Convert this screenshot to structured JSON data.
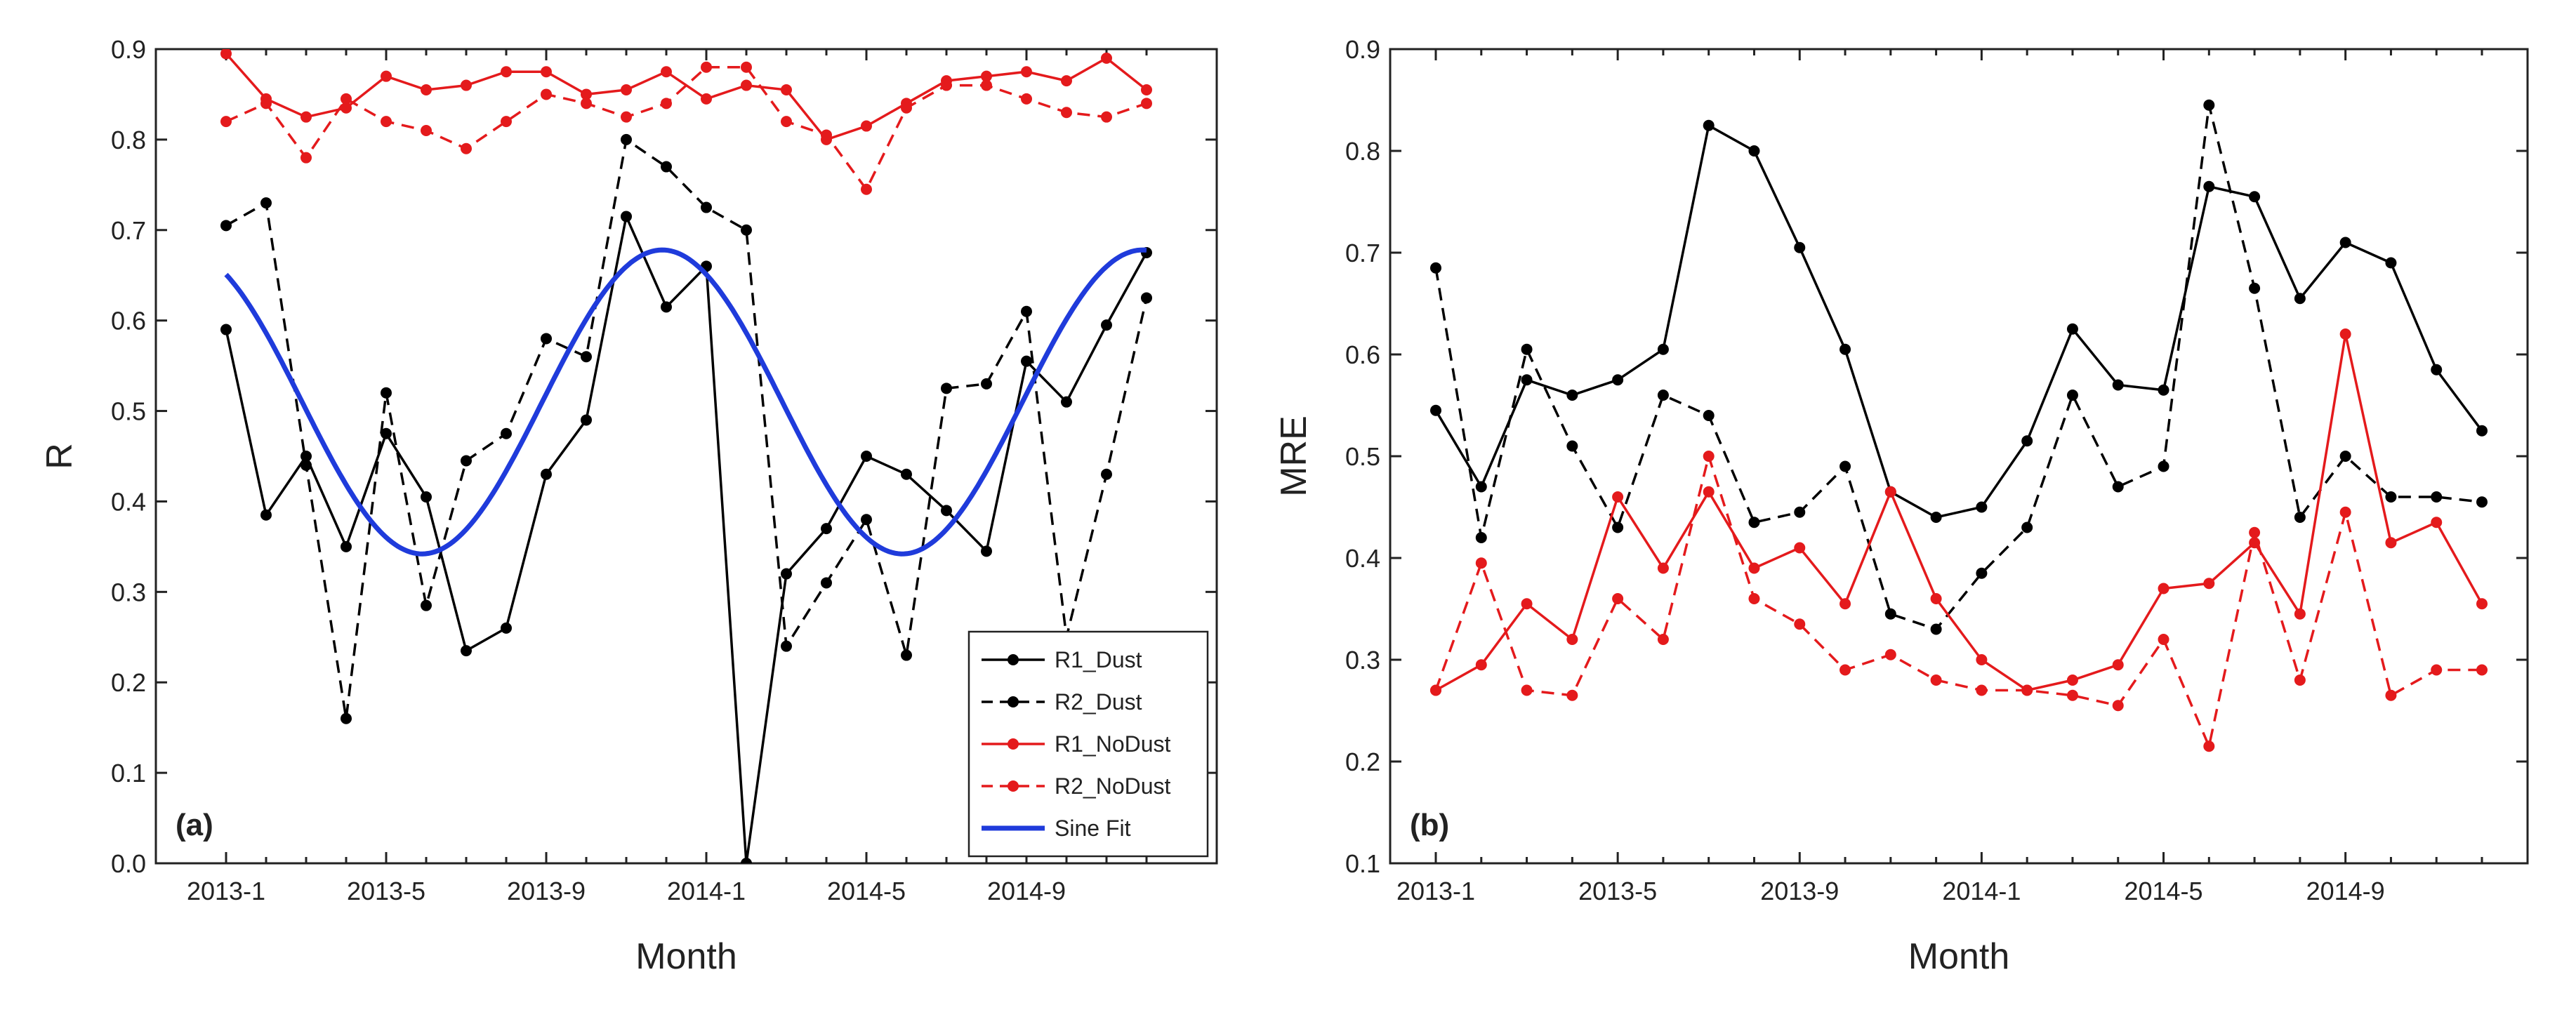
{
  "chart_data": [
    {
      "type": "line",
      "panel_label": "(a)",
      "xlabel": "Month",
      "ylabel": "R",
      "ylim": [
        0,
        0.9
      ],
      "yticks": [
        0.0,
        0.1,
        0.2,
        0.3,
        0.4,
        0.5,
        0.6,
        0.7,
        0.8,
        0.9
      ],
      "ytick_labels": [
        "0.0",
        "0.1",
        "0.2",
        "0.3",
        "0.4",
        "0.5",
        "0.6",
        "0.7",
        "0.8",
        "0.9"
      ],
      "xtick_labels": [
        "2013-1",
        "2013-5",
        "2013-9",
        "2014-1",
        "2014-5",
        "2014-9"
      ],
      "x": [
        "2013-1",
        "2013-2",
        "2013-3",
        "2013-4",
        "2013-5",
        "2013-6",
        "2013-7",
        "2013-8",
        "2013-9",
        "2013-10",
        "2013-11",
        "2013-12",
        "2014-1",
        "2014-2",
        "2014-3",
        "2014-4",
        "2014-5",
        "2014-6",
        "2014-7",
        "2014-8",
        "2014-9",
        "2014-10",
        "2014-11",
        "2014-12"
      ],
      "legend_position": "bottom-right",
      "grid": false,
      "series": [
        {
          "name": "R1_Dust",
          "color": "#000000",
          "dash": "solid",
          "marker": true,
          "values": [
            0.59,
            0.385,
            0.45,
            0.35,
            0.475,
            0.405,
            0.235,
            0.26,
            0.43,
            0.49,
            0.715,
            0.615,
            0.66,
            0.0,
            0.32,
            0.37,
            0.45,
            0.43,
            0.39,
            0.345,
            0.555,
            0.51,
            0.595,
            0.675
          ]
        },
        {
          "name": "R2_Dust",
          "color": "#000000",
          "dash": "dashed",
          "marker": true,
          "values": [
            0.705,
            0.73,
            0.44,
            0.16,
            0.52,
            0.285,
            0.445,
            0.475,
            0.58,
            0.56,
            0.8,
            0.77,
            0.725,
            0.7,
            0.24,
            0.31,
            0.38,
            0.23,
            0.525,
            0.53,
            0.61,
            0.25,
            0.43,
            0.625
          ]
        },
        {
          "name": "R1_NoDust",
          "color": "#e41a1c",
          "dash": "solid",
          "marker": true,
          "values": [
            0.895,
            0.845,
            0.825,
            0.835,
            0.87,
            0.855,
            0.86,
            0.875,
            0.875,
            0.85,
            0.855,
            0.875,
            0.845,
            0.86,
            0.855,
            0.8,
            0.815,
            0.84,
            0.865,
            0.87,
            0.875,
            0.865,
            0.89,
            0.855
          ]
        },
        {
          "name": "R2_NoDust",
          "color": "#e41a1c",
          "dash": "dashed",
          "marker": true,
          "values": [
            0.82,
            0.84,
            0.78,
            0.845,
            0.82,
            0.81,
            0.79,
            0.82,
            0.85,
            0.84,
            0.825,
            0.84,
            0.88,
            0.88,
            0.82,
            0.805,
            0.745,
            0.835,
            0.86,
            0.86,
            0.845,
            0.83,
            0.825,
            0.84
          ]
        },
        {
          "name": "Sine Fit",
          "color": "#1f3bdb",
          "dash": "solid",
          "marker": false,
          "sine": {
            "mean": 0.51,
            "amplitude": 0.168,
            "period_months": 12,
            "peak_month_index": 10.9,
            "x_start": 0,
            "x_end": 23
          }
        }
      ]
    },
    {
      "type": "line",
      "panel_label": "(b)",
      "xlabel": "Month",
      "ylabel": "MRE",
      "ylim": [
        0.1,
        0.9
      ],
      "yticks": [
        0.1,
        0.2,
        0.3,
        0.4,
        0.5,
        0.6,
        0.7,
        0.8,
        0.9
      ],
      "ytick_labels": [
        "0.1",
        "0.2",
        "0.3",
        "0.4",
        "0.5",
        "0.6",
        "0.7",
        "0.8",
        "0.9"
      ],
      "xtick_labels": [
        "2013-1",
        "2013-5",
        "2013-9",
        "2014-1",
        "2014-5",
        "2014-9"
      ],
      "x": [
        "2013-1",
        "2013-2",
        "2013-3",
        "2013-4",
        "2013-5",
        "2013-6",
        "2013-7",
        "2013-8",
        "2013-9",
        "2013-10",
        "2013-11",
        "2013-12",
        "2014-1",
        "2014-2",
        "2014-3",
        "2014-4",
        "2014-5",
        "2014-6",
        "2014-7",
        "2014-8",
        "2014-9",
        "2014-10",
        "2014-11",
        "2014-12"
      ],
      "grid": false,
      "series": [
        {
          "name": "R1_Dust",
          "color": "#000000",
          "dash": "solid",
          "marker": true,
          "values": [
            0.545,
            0.47,
            0.575,
            0.56,
            0.575,
            0.605,
            0.825,
            0.8,
            0.705,
            0.605,
            0.465,
            0.44,
            0.45,
            0.515,
            0.625,
            0.57,
            0.565,
            0.765,
            0.755,
            0.655,
            0.71,
            0.69,
            0.585,
            0.525
          ]
        },
        {
          "name": "R2_Dust",
          "color": "#000000",
          "dash": "dashed",
          "marker": true,
          "values": [
            0.685,
            0.42,
            0.605,
            0.51,
            0.43,
            0.56,
            0.54,
            0.435,
            0.445,
            0.49,
            0.345,
            0.33,
            0.385,
            0.43,
            0.56,
            0.47,
            0.49,
            0.845,
            0.665,
            0.44,
            0.5,
            0.46,
            0.46,
            0.455
          ]
        },
        {
          "name": "R1_NoDust",
          "color": "#e41a1c",
          "dash": "solid",
          "marker": true,
          "values": [
            0.27,
            0.295,
            0.355,
            0.32,
            0.46,
            0.39,
            0.465,
            0.39,
            0.41,
            0.355,
            0.465,
            0.36,
            0.3,
            0.27,
            0.28,
            0.295,
            0.37,
            0.375,
            0.415,
            0.345,
            0.62,
            0.415,
            0.435,
            0.355
          ]
        },
        {
          "name": "R2_NoDust",
          "color": "#e41a1c",
          "dash": "dashed",
          "marker": true,
          "values": [
            0.27,
            0.395,
            0.27,
            0.265,
            0.36,
            0.32,
            0.5,
            0.36,
            0.335,
            0.29,
            0.305,
            0.28,
            0.27,
            0.27,
            0.265,
            0.255,
            0.32,
            0.215,
            0.425,
            0.28,
            0.445,
            0.265,
            0.29,
            0.29
          ]
        }
      ]
    }
  ]
}
